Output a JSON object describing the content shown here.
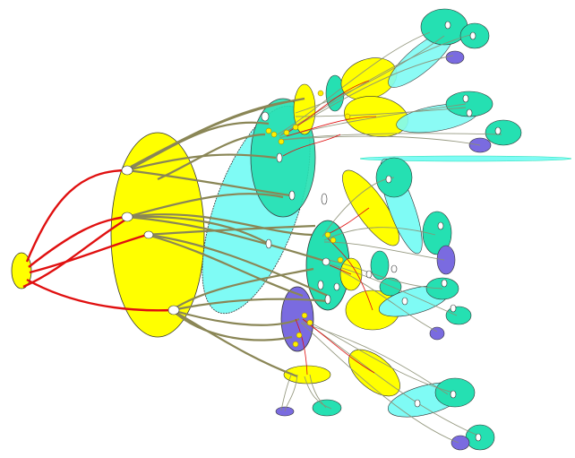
{
  "diagram": {
    "kind": "hierarchical-ellipse-graph",
    "background": "#ffffff",
    "colors": {
      "yellow": "#ffff00",
      "aqua": "#7ffbf5",
      "teal": "#25e0b2",
      "purple": "#7a6be0",
      "red_edge": "#e01010",
      "olive_edge": "#8a8656",
      "outline": "#333333"
    },
    "labels": []
  }
}
